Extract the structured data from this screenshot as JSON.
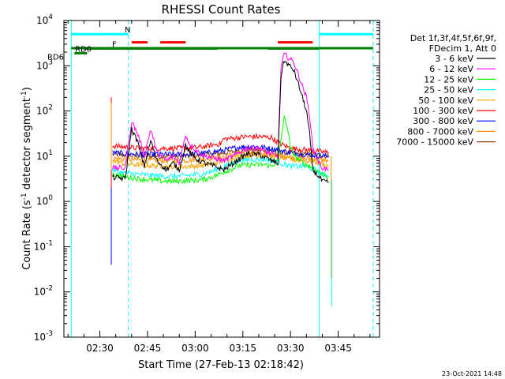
{
  "chart_data": {
    "type": "line",
    "title": "RHESSI Count Rates",
    "xlabel": "Start Time (27-Feb-13 02:18:42)",
    "ylabel": "Count Rate (s⁻¹ detector segment⁻¹)",
    "ylabel_main": "Count Rate (s",
    "ylabel_sup1": "-1",
    "ylabel_mid": " detector segment",
    "ylabel_sup2": "-1",
    "ylabel_end": ")",
    "y_scale": "log",
    "ylim": [
      0.001,
      10000
    ],
    "y_ticks": [
      {
        "base": "10",
        "exp": "-3",
        "value": 0.001
      },
      {
        "base": "10",
        "exp": "-2",
        "value": 0.01
      },
      {
        "base": "10",
        "exp": "-1",
        "value": 0.1
      },
      {
        "base": "10",
        "exp": "0",
        "value": 1
      },
      {
        "base": "10",
        "exp": "1",
        "value": 10
      },
      {
        "base": "10",
        "exp": "2",
        "value": 100
      },
      {
        "base": "10",
        "exp": "3",
        "value": 1000
      },
      {
        "base": "10",
        "exp": "4",
        "value": 10000
      }
    ],
    "x_range": [
      "02:18:42",
      "03:58:00"
    ],
    "x_ticks": [
      "02:30",
      "02:45",
      "03:00",
      "03:15",
      "03:30",
      "03:45"
    ],
    "x_tick_minutes": [
      150,
      165,
      180,
      195,
      210,
      225
    ],
    "legend_header": [
      "Det 1f,3f,4f,5f,6f,9f,",
      "FDecim 1, Att 0"
    ],
    "series": [
      {
        "name": "3 - 6 keV",
        "color": "#000000",
        "points": [
          [
            154,
            3.4
          ],
          [
            158,
            3.2
          ],
          [
            160,
            40
          ],
          [
            162,
            20
          ],
          [
            164,
            6
          ],
          [
            166,
            22
          ],
          [
            168,
            8
          ],
          [
            171,
            5
          ],
          [
            173,
            7
          ],
          [
            175,
            5
          ],
          [
            177,
            18
          ],
          [
            178,
            13
          ],
          [
            180,
            9
          ],
          [
            183,
            7
          ],
          [
            186,
            6
          ],
          [
            189,
            5
          ],
          [
            192,
            7
          ],
          [
            196,
            11
          ],
          [
            200,
            11
          ],
          [
            204,
            8
          ],
          [
            206,
            7
          ],
          [
            207,
            600
          ],
          [
            208,
            1300
          ],
          [
            211,
            800
          ],
          [
            213,
            300
          ],
          [
            215,
            100
          ],
          [
            216,
            30
          ],
          [
            217,
            5
          ],
          [
            219,
            3.5
          ],
          [
            220,
            2.8
          ],
          [
            222,
            2.6
          ]
        ]
      },
      {
        "name": "6 - 12 keV",
        "color": "#ff00ff",
        "points": [
          [
            154,
            5.5
          ],
          [
            158,
            5.5
          ],
          [
            160,
            60
          ],
          [
            162,
            30
          ],
          [
            164,
            10
          ],
          [
            166,
            40
          ],
          [
            168,
            12
          ],
          [
            171,
            8
          ],
          [
            173,
            10
          ],
          [
            175,
            7
          ],
          [
            177,
            30
          ],
          [
            178,
            20
          ],
          [
            180,
            14
          ],
          [
            183,
            10
          ],
          [
            186,
            9
          ],
          [
            189,
            8
          ],
          [
            192,
            10
          ],
          [
            196,
            15
          ],
          [
            200,
            15
          ],
          [
            204,
            11
          ],
          [
            206,
            10
          ],
          [
            207,
            900
          ],
          [
            208,
            1800
          ],
          [
            211,
            1200
          ],
          [
            213,
            500
          ],
          [
            215,
            200
          ],
          [
            216,
            80
          ],
          [
            217,
            15
          ],
          [
            219,
            7
          ],
          [
            220,
            5.5
          ],
          [
            222,
            5
          ]
        ]
      },
      {
        "name": "12 - 25 keV",
        "color": "#00ff00",
        "points": [
          [
            154,
            4
          ],
          [
            158,
            3.5
          ],
          [
            162,
            3.2
          ],
          [
            166,
            3
          ],
          [
            170,
            2.8
          ],
          [
            174,
            2.8
          ],
          [
            178,
            2.9
          ],
          [
            182,
            3
          ],
          [
            186,
            3.6
          ],
          [
            190,
            4.8
          ],
          [
            194,
            6.2
          ],
          [
            198,
            6.5
          ],
          [
            202,
            6.5
          ],
          [
            204,
            6
          ],
          [
            206,
            8
          ],
          [
            208,
            70
          ],
          [
            209,
            45
          ],
          [
            210,
            15
          ],
          [
            212,
            9
          ],
          [
            214,
            7
          ],
          [
            216,
            6
          ],
          [
            218,
            5
          ],
          [
            220,
            4
          ],
          [
            222,
            3.5
          ]
        ]
      },
      {
        "name": "25 - 50 keV",
        "color": "#00ffff",
        "points": [
          [
            154,
            5
          ],
          [
            158,
            4.2
          ],
          [
            162,
            4
          ],
          [
            166,
            3.8
          ],
          [
            170,
            3.6
          ],
          [
            174,
            3.6
          ],
          [
            178,
            3.8
          ],
          [
            182,
            4
          ],
          [
            186,
            4.8
          ],
          [
            190,
            6.3
          ],
          [
            194,
            8
          ],
          [
            198,
            8.5
          ],
          [
            202,
            8.5
          ],
          [
            206,
            7.5
          ],
          [
            210,
            6
          ],
          [
            214,
            6
          ],
          [
            218,
            5
          ],
          [
            220,
            4
          ],
          [
            222,
            3.8
          ]
        ]
      },
      {
        "name": "50 - 100 keV",
        "color": "#ffa500",
        "points": [
          [
            154,
            8
          ],
          [
            158,
            6.8
          ],
          [
            162,
            6.5
          ],
          [
            166,
            6.2
          ],
          [
            170,
            6
          ],
          [
            174,
            5.8
          ],
          [
            178,
            6
          ],
          [
            182,
            6.2
          ],
          [
            186,
            7
          ],
          [
            190,
            8.5
          ],
          [
            194,
            10
          ],
          [
            198,
            10.5
          ],
          [
            202,
            10.5
          ],
          [
            206,
            9.8
          ],
          [
            210,
            8.5
          ],
          [
            214,
            8
          ],
          [
            218,
            7.5
          ],
          [
            222,
            6
          ]
        ]
      },
      {
        "name": "100 - 300 keV",
        "color": "#ff0000",
        "points": [
          [
            154,
            17
          ],
          [
            158,
            16
          ],
          [
            162,
            15
          ],
          [
            166,
            15
          ],
          [
            170,
            15
          ],
          [
            174,
            15
          ],
          [
            178,
            15
          ],
          [
            182,
            16
          ],
          [
            186,
            18
          ],
          [
            188,
            19
          ],
          [
            189,
            24
          ],
          [
            192,
            25
          ],
          [
            196,
            27
          ],
          [
            200,
            27
          ],
          [
            204,
            26
          ],
          [
            206,
            20
          ],
          [
            210,
            15
          ],
          [
            214,
            14
          ],
          [
            218,
            13
          ],
          [
            222,
            12
          ]
        ]
      },
      {
        "name": "300 - 800 keV",
        "color": "#0000ff",
        "points": [
          [
            154,
            12
          ],
          [
            158,
            11.5
          ],
          [
            162,
            11
          ],
          [
            166,
            11
          ],
          [
            170,
            11
          ],
          [
            174,
            11
          ],
          [
            178,
            11
          ],
          [
            182,
            11.5
          ],
          [
            186,
            12.5
          ],
          [
            190,
            14
          ],
          [
            194,
            16
          ],
          [
            198,
            16.5
          ],
          [
            202,
            15.5
          ],
          [
            206,
            14
          ],
          [
            210,
            12
          ],
          [
            214,
            11
          ],
          [
            218,
            10.5
          ],
          [
            222,
            10
          ]
        ]
      },
      {
        "name": "800 - 7000 keV",
        "color": "#ff8c00",
        "points": [
          [
            154,
            9
          ],
          [
            158,
            8.6
          ],
          [
            162,
            8.2
          ],
          [
            166,
            8
          ],
          [
            170,
            8
          ],
          [
            174,
            8
          ],
          [
            178,
            8.2
          ],
          [
            182,
            8.6
          ],
          [
            186,
            9.2
          ],
          [
            190,
            10
          ],
          [
            194,
            11.5
          ],
          [
            198,
            12
          ],
          [
            202,
            11.5
          ],
          [
            206,
            10.5
          ],
          [
            210,
            9.5
          ],
          [
            214,
            9
          ],
          [
            218,
            8.6
          ],
          [
            222,
            8
          ]
        ]
      },
      {
        "name": "7000 - 15000 keV",
        "color": "#8b4513",
        "points": [
          [
            154,
            11
          ],
          [
            158,
            10.5
          ],
          [
            162,
            10
          ],
          [
            166,
            10
          ],
          [
            170,
            10
          ],
          [
            174,
            10
          ],
          [
            178,
            10
          ],
          [
            182,
            10.5
          ],
          [
            186,
            11
          ],
          [
            190,
            12
          ],
          [
            194,
            13.5
          ],
          [
            198,
            14
          ],
          [
            202,
            13.5
          ],
          [
            206,
            12.5
          ],
          [
            210,
            11.5
          ],
          [
            214,
            11
          ],
          [
            218,
            10.5
          ],
          [
            222,
            10
          ]
        ]
      }
    ],
    "spikes": [
      {
        "minute": 153.6,
        "top": 200,
        "bottom": 0.04,
        "color": "#0000ff"
      },
      {
        "minute": 153.6,
        "top": 200,
        "bottom": 2,
        "color": "#ff0000"
      },
      {
        "minute": 153.6,
        "top": 150,
        "bottom": 5,
        "color": "#ffa500"
      },
      {
        "minute": 222.8,
        "top": 10,
        "bottom": 0.02,
        "color": "#ff8c00"
      },
      {
        "minute": 223.0,
        "top": 3,
        "bottom": 0.005,
        "color": "#00ffff"
      }
    ],
    "vertical_markers": [
      {
        "minute": 141,
        "style": "solid",
        "color": "#00ffff"
      },
      {
        "minute": 159,
        "style": "dashed",
        "color": "#00ffff"
      },
      {
        "minute": 219,
        "style": "solid",
        "color": "#00ffff"
      },
      {
        "minute": 236,
        "style": "dashed",
        "color": "#00ffff"
      }
    ],
    "state_bars": [
      {
        "label": "N",
        "color": "#00ffff",
        "y": 5000,
        "segments": [
          [
            141,
            159
          ],
          [
            219,
            236
          ]
        ]
      },
      {
        "label": "F",
        "color": "#ff0000",
        "y": 3300,
        "segments": [
          [
            160,
            165
          ],
          [
            169,
            177
          ],
          [
            206,
            217
          ]
        ]
      },
      {
        "label": "RD0",
        "color": "#008000",
        "y": 2400,
        "segments": [
          [
            145,
            187
          ],
          [
            203,
            219
          ]
        ]
      },
      {
        "label": "RD6",
        "color": "#008000",
        "y": 1900,
        "segments": [
          [
            142,
            146
          ]
        ]
      },
      {
        "label": "",
        "color": "#008000",
        "y": 2450,
        "segments": [
          [
            141,
            236
          ]
        ]
      }
    ],
    "footer_date": "23-Oct-2021 14:48"
  }
}
